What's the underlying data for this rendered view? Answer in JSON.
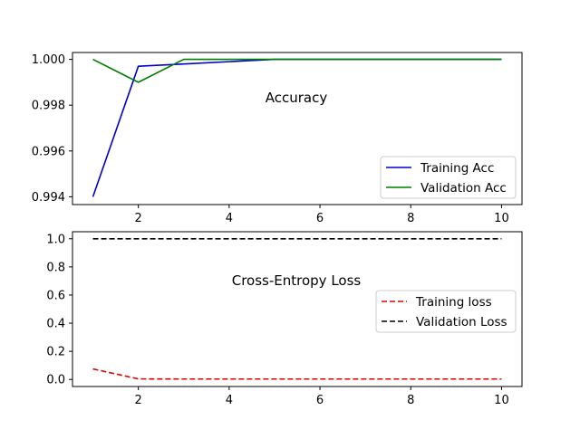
{
  "chart_data": [
    {
      "type": "line",
      "title": "Accuracy",
      "xlabel": "",
      "ylabel": "",
      "xlim": [
        0.55,
        10.45
      ],
      "ylim": [
        0.99366,
        1.0003
      ],
      "x_ticks": [
        2,
        4,
        6,
        8,
        10
      ],
      "x_tick_labels": [
        "2",
        "4",
        "6",
        "8",
        "10"
      ],
      "y_ticks": [
        0.994,
        0.996,
        0.998,
        1.0
      ],
      "y_tick_labels": [
        "0.994",
        "0.996",
        "0.998",
        "1.000"
      ],
      "grid": false,
      "legend_position": "lower-right",
      "x": [
        1,
        2,
        3,
        4,
        5,
        6,
        7,
        8,
        9,
        10
      ],
      "series": [
        {
          "name": "Training Acc",
          "color": "#0000cc",
          "style": "solid",
          "values": [
            0.994,
            0.9997,
            0.9998,
            0.9999,
            1.0,
            1.0,
            1.0,
            1.0,
            1.0,
            1.0
          ]
        },
        {
          "name": "Validation Acc",
          "color": "#007f00",
          "style": "solid",
          "values": [
            1.0,
            0.999,
            1.0,
            1.0,
            1.0,
            1.0,
            1.0,
            1.0,
            1.0,
            1.0
          ]
        }
      ]
    },
    {
      "type": "line",
      "title": "Cross-Entropy Loss",
      "xlabel": "",
      "ylabel": "",
      "xlim": [
        0.55,
        10.45
      ],
      "ylim": [
        -0.05,
        1.05
      ],
      "x_ticks": [
        2,
        4,
        6,
        8,
        10
      ],
      "x_tick_labels": [
        "2",
        "4",
        "6",
        "8",
        "10"
      ],
      "y_ticks": [
        0.0,
        0.2,
        0.4,
        0.6,
        0.8,
        1.0
      ],
      "y_tick_labels": [
        "0.0",
        "0.2",
        "0.4",
        "0.6",
        "0.8",
        "1.0"
      ],
      "grid": false,
      "legend_position": "center-right",
      "x": [
        1,
        2,
        3,
        4,
        5,
        6,
        7,
        8,
        9,
        10
      ],
      "series": [
        {
          "name": "Training loss",
          "color": "#e60000",
          "style": "dashed",
          "values": [
            0.075,
            0.004,
            0.003,
            0.003,
            0.003,
            0.003,
            0.003,
            0.003,
            0.003,
            0.003
          ]
        },
        {
          "name": "Validation Loss",
          "color": "#000000",
          "style": "dashed",
          "values": [
            1.0,
            1.0,
            1.0,
            1.0,
            1.0,
            1.0,
            1.0,
            1.0,
            1.0,
            1.0
          ]
        }
      ]
    }
  ]
}
